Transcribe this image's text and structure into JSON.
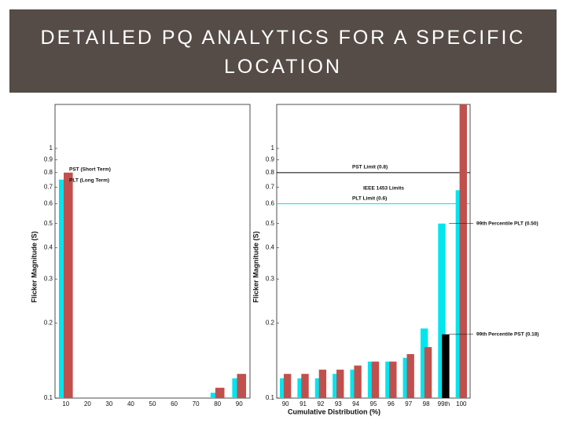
{
  "title": "DETAILED PQ ANALYTICS FOR A SPECIFIC LOCATION",
  "chart_data": [
    {
      "type": "bar",
      "log": true,
      "ylabel": "Flicker Magnitude (S)",
      "categories": [
        "10",
        "20",
        "30",
        "40",
        "50",
        "60",
        "70",
        "80",
        "90"
      ],
      "series": [
        {
          "name": "PLT (Long Term)",
          "color": "#00e5ee",
          "values": [
            0.75,
            0.1,
            0.1,
            0.1,
            0.1,
            0.1,
            0.1,
            0.105,
            0.12
          ]
        },
        {
          "name": "PST (Short Term)",
          "color": "#c0504d",
          "values": [
            0.8,
            0.1,
            0.1,
            0.1,
            0.1,
            0.1,
            0.1,
            0.11,
            0.125
          ]
        }
      ],
      "ylim": [
        0.1,
        1.5
      ],
      "yticks": [
        0.1,
        0.2,
        0.3,
        0.4,
        0.5,
        0.6,
        0.7,
        0.8,
        0.9,
        1
      ]
    },
    {
      "type": "bar",
      "log": true,
      "ylabel": "Flicker Magnitude (S)",
      "xlabel": "Cumulative Distribution (%)",
      "categories": [
        "90",
        "91",
        "92",
        "93",
        "94",
        "95",
        "96",
        "97",
        "98",
        "99th",
        "100"
      ],
      "series": [
        {
          "color": "#00e5ee",
          "values": [
            0.12,
            0.12,
            0.12,
            0.125,
            0.13,
            0.14,
            0.14,
            0.145,
            0.19,
            0.5,
            0.68
          ]
        },
        {
          "color": "#c0504d",
          "colors": [
            "#c0504d",
            "#c0504d",
            "#c0504d",
            "#c0504d",
            "#c0504d",
            "#c0504d",
            "#c0504d",
            "#c0504d",
            "#c0504d",
            "#000000",
            "#c0504d"
          ],
          "values": [
            0.125,
            0.125,
            0.13,
            0.13,
            0.135,
            0.14,
            0.14,
            0.15,
            0.16,
            0.18,
            1.5
          ]
        }
      ],
      "ylim": [
        0.1,
        1.5
      ],
      "yticks": [
        0.1,
        0.2,
        0.3,
        0.4,
        0.5,
        0.6,
        0.7,
        0.8,
        0.9,
        1
      ],
      "reflines": [
        {
          "value": 0.8,
          "label": "PST Limit (0.8)",
          "color": "#000000"
        },
        {
          "value": 0.6,
          "label": "PLT Limit (0.6)",
          "color": "#00e5ee"
        }
      ],
      "ref_note": "IEEE 1453 Limits",
      "point_notes": [
        {
          "series": 0,
          "index": 9,
          "label": "99th Percentile PLT (0.50)"
        },
        {
          "series": 1,
          "index": 9,
          "label": "99th Percentile PST (0.18)"
        }
      ]
    }
  ]
}
